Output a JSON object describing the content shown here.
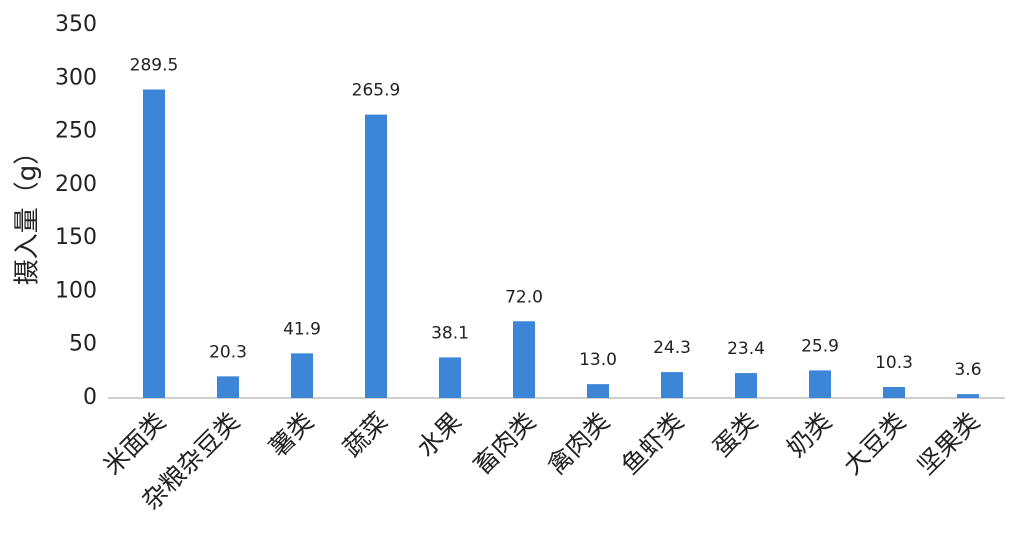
{
  "chart_data": {
    "type": "bar",
    "y_label": "摄入量（g）",
    "categories": [
      "米面类",
      "杂粮杂豆类",
      "薯类",
      "蔬菜",
      "水果",
      "畜肉类",
      "禽肉类",
      "鱼虾类",
      "蛋类",
      "奶类",
      "大豆类",
      "坚果类"
    ],
    "values": [
      289.5,
      20.3,
      41.9,
      265.9,
      38.1,
      72,
      13,
      24.3,
      23.4,
      25.9,
      10.3,
      3.6
    ],
    "value_labels": [
      "289.5",
      "20.3",
      "41.9",
      "265.9",
      "38.1",
      "72.0",
      "13.0",
      "24.3",
      "23.4",
      "25.9",
      "10.3",
      "3.6"
    ],
    "color": "#3d85d6",
    "ylim": [
      0,
      350
    ],
    "yticks": [
      0,
      50,
      100,
      150,
      200,
      250,
      300,
      350
    ],
    "grid": false
  }
}
